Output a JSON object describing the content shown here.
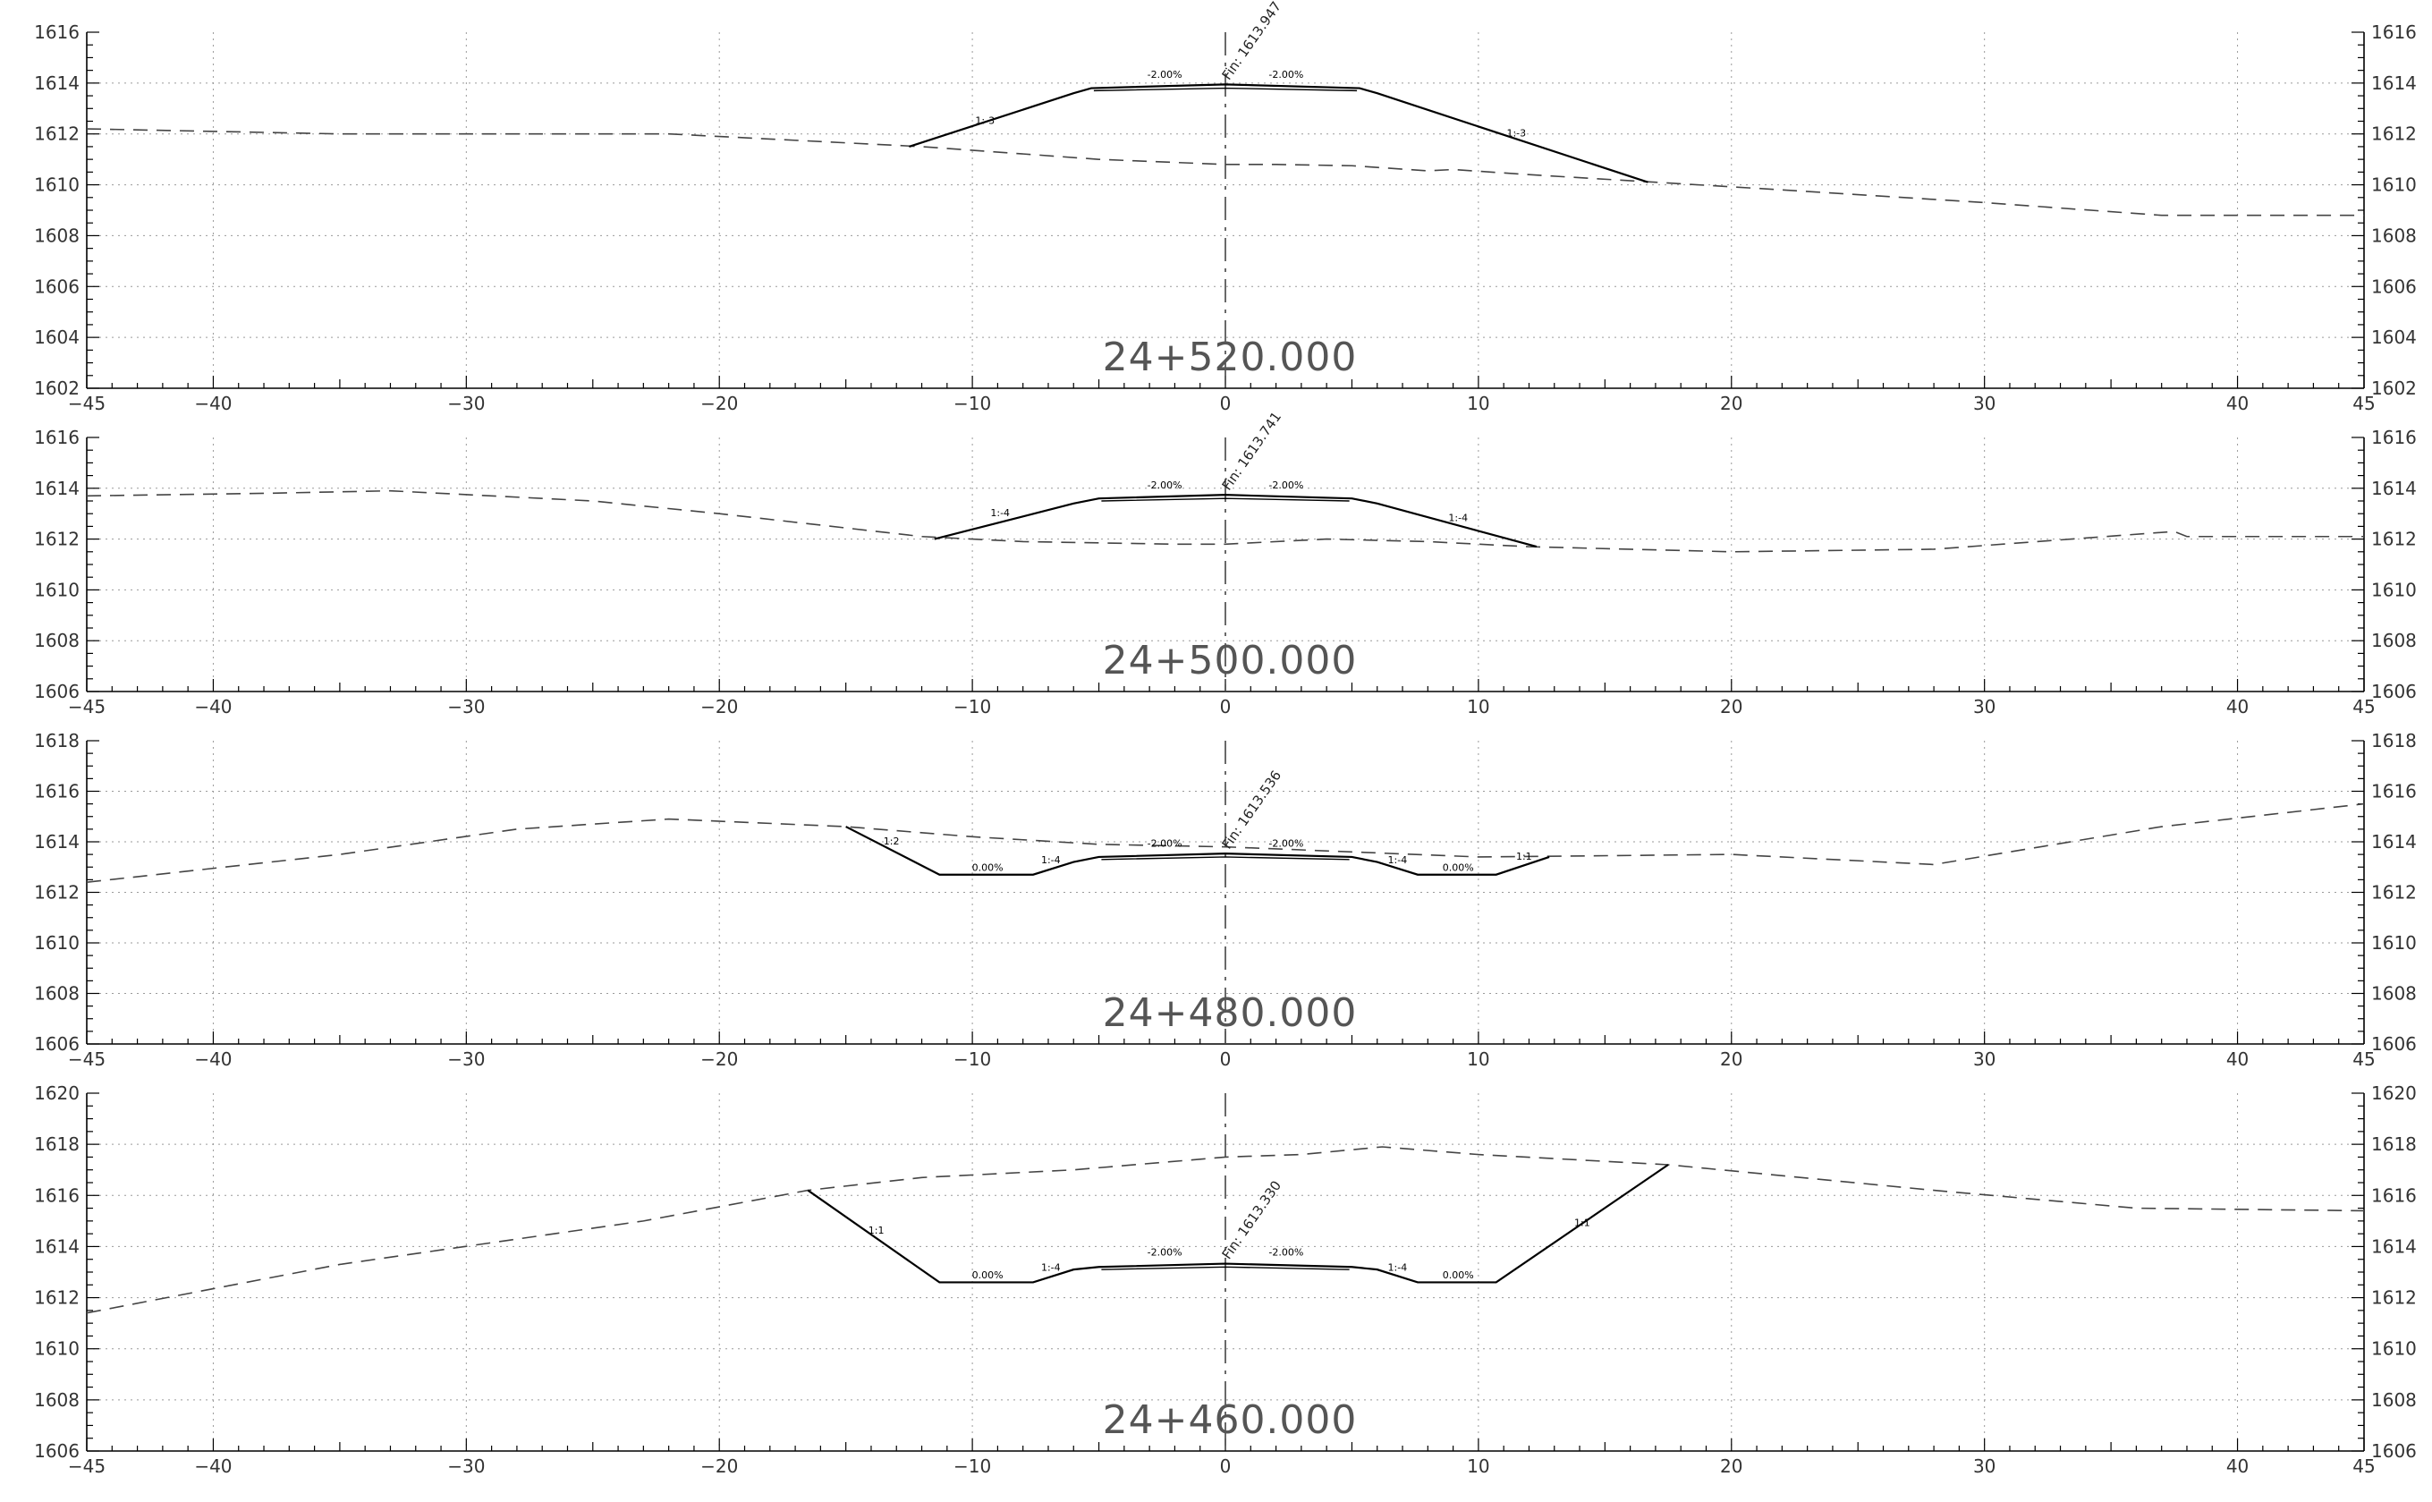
{
  "xTicks": [
    -45,
    -40,
    -30,
    -20,
    -10,
    0,
    10,
    20,
    30,
    40,
    45
  ],
  "sections": [
    {
      "station": "24+520.000",
      "yRange": [
        1602,
        1616
      ],
      "yTicks": [
        1602,
        1604,
        1606,
        1608,
        1610,
        1612,
        1614,
        1616
      ],
      "fin": "Fin: 1613.947",
      "finElev": 1613.947,
      "ground": [
        [
          -45,
          1612.2
        ],
        [
          -35,
          1612.0
        ],
        [
          -25,
          1612.0
        ],
        [
          -22,
          1612.0
        ],
        [
          -18,
          1611.8
        ],
        [
          -12,
          1611.5
        ],
        [
          -5,
          1611.0
        ],
        [
          0,
          1610.8
        ],
        [
          2,
          1610.8
        ],
        [
          5,
          1610.75
        ],
        [
          8,
          1610.55
        ],
        [
          9,
          1610.6
        ],
        [
          12,
          1610.4
        ],
        [
          17,
          1610.1
        ],
        [
          22,
          1609.8
        ],
        [
          30,
          1609.3
        ],
        [
          37,
          1608.8
        ],
        [
          45,
          1608.8
        ]
      ],
      "design": [
        [
          -12.5,
          1611.5
        ],
        [
          -6,
          1613.6
        ],
        [
          -5.3,
          1613.8
        ],
        [
          0,
          1613.947
        ],
        [
          5.3,
          1613.8
        ],
        [
          6,
          1613.6
        ],
        [
          16.7,
          1610.1
        ]
      ],
      "pavementInner": [
        [
          -5.2,
          1613.7
        ],
        [
          0,
          1613.8
        ],
        [
          5.2,
          1613.7
        ]
      ],
      "labels": [
        {
          "text": "1:-3",
          "x": -9.5,
          "y": 1612.4
        },
        {
          "text": "-2.00%",
          "x": -2.4,
          "y": 1614.2
        },
        {
          "text": "-2.00%",
          "x": 2.4,
          "y": 1614.2
        },
        {
          "text": "1:-3",
          "x": 11.5,
          "y": 1611.9
        }
      ]
    },
    {
      "station": "24+500.000",
      "yRange": [
        1606,
        1616
      ],
      "yTicks": [
        1606,
        1608,
        1610,
        1612,
        1614,
        1616
      ],
      "fin": "Fin: 1613.741",
      "finElev": 1613.741,
      "ground": [
        [
          -45,
          1613.7
        ],
        [
          -38,
          1613.8
        ],
        [
          -33,
          1613.9
        ],
        [
          -25,
          1613.5
        ],
        [
          -20,
          1613.0
        ],
        [
          -12,
          1612.1
        ],
        [
          -8,
          1611.9
        ],
        [
          -2,
          1611.8
        ],
        [
          0,
          1611.8
        ],
        [
          4,
          1612.0
        ],
        [
          8,
          1611.9
        ],
        [
          12,
          1611.7
        ],
        [
          20,
          1611.5
        ],
        [
          28,
          1611.6
        ],
        [
          37.5,
          1612.3
        ],
        [
          38,
          1612.1
        ],
        [
          45,
          1612.1
        ]
      ],
      "design": [
        [
          -11.5,
          1612.0
        ],
        [
          -6,
          1613.4
        ],
        [
          -5,
          1613.6
        ],
        [
          0,
          1613.741
        ],
        [
          5,
          1613.6
        ],
        [
          6,
          1613.4
        ],
        [
          12.3,
          1611.7
        ]
      ],
      "pavementInner": [
        [
          -4.9,
          1613.5
        ],
        [
          0,
          1613.6
        ],
        [
          4.9,
          1613.5
        ]
      ],
      "labels": [
        {
          "text": "1:-4",
          "x": -8.9,
          "y": 1612.9
        },
        {
          "text": "-2.00%",
          "x": -2.4,
          "y": 1614.0
        },
        {
          "text": "-2.00%",
          "x": 2.4,
          "y": 1614.0
        },
        {
          "text": "1:-4",
          "x": 9.2,
          "y": 1612.7
        }
      ]
    },
    {
      "station": "24+480.000",
      "yRange": [
        1606,
        1618
      ],
      "yTicks": [
        1606,
        1608,
        1610,
        1612,
        1614,
        1616,
        1618
      ],
      "fin": "Fin: 1613.536",
      "finElev": 1613.536,
      "ground": [
        [
          -45,
          1612.4
        ],
        [
          -35,
          1613.5
        ],
        [
          -28,
          1614.5
        ],
        [
          -22,
          1614.9
        ],
        [
          -15,
          1614.6
        ],
        [
          -10,
          1614.2
        ],
        [
          -5,
          1613.9
        ],
        [
          0,
          1613.8
        ],
        [
          5,
          1613.6
        ],
        [
          10,
          1613.4
        ],
        [
          20,
          1613.5
        ],
        [
          28,
          1613.1
        ],
        [
          37,
          1614.6
        ],
        [
          45,
          1615.5
        ]
      ],
      "design": [
        [
          -15,
          1614.6
        ],
        [
          -11.3,
          1612.7
        ],
        [
          -7.6,
          1612.7
        ],
        [
          -6,
          1613.2
        ],
        [
          -5,
          1613.4
        ],
        [
          0,
          1613.536
        ],
        [
          5,
          1613.4
        ],
        [
          6,
          1613.2
        ],
        [
          7.6,
          1612.7
        ],
        [
          10.7,
          1612.7
        ],
        [
          12.8,
          1613.4
        ]
      ],
      "pavementInner": [
        [
          -4.9,
          1613.3
        ],
        [
          0,
          1613.4
        ],
        [
          4.9,
          1613.3
        ]
      ],
      "labels": [
        {
          "text": "1:2",
          "x": -13.2,
          "y": 1613.9
        },
        {
          "text": "0.00%",
          "x": -9.4,
          "y": 1612.85
        },
        {
          "text": "1:-4",
          "x": -6.9,
          "y": 1613.15
        },
        {
          "text": "-2.00%",
          "x": -2.4,
          "y": 1613.8
        },
        {
          "text": "-2.00%",
          "x": 2.4,
          "y": 1613.8
        },
        {
          "text": "1:-4",
          "x": 6.8,
          "y": 1613.15
        },
        {
          "text": "0.00%",
          "x": 9.2,
          "y": 1612.85
        },
        {
          "text": "1:1",
          "x": 11.8,
          "y": 1613.3
        }
      ]
    },
    {
      "station": "24+460.000",
      "yRange": [
        1606,
        1620
      ],
      "yTicks": [
        1606,
        1608,
        1610,
        1612,
        1614,
        1616,
        1618,
        1620
      ],
      "fin": "Fin: 1613.330",
      "finElev": 1613.33,
      "ground": [
        [
          -45,
          1611.4
        ],
        [
          -35,
          1613.3
        ],
        [
          -23,
          1615.0
        ],
        [
          -16.5,
          1616.2
        ],
        [
          -12,
          1616.7
        ],
        [
          -6,
          1617.0
        ],
        [
          0,
          1617.5
        ],
        [
          3,
          1617.6
        ],
        [
          6.2,
          1617.9
        ],
        [
          10,
          1617.6
        ],
        [
          17.5,
          1617.2
        ],
        [
          28,
          1616.2
        ],
        [
          36,
          1615.5
        ],
        [
          45,
          1615.4
        ]
      ],
      "design": [
        [
          -16.5,
          1616.2
        ],
        [
          -11.3,
          1612.6
        ],
        [
          -7.6,
          1612.6
        ],
        [
          -6,
          1613.1
        ],
        [
          -5,
          1613.2
        ],
        [
          0,
          1613.33
        ],
        [
          5,
          1613.2
        ],
        [
          6,
          1613.1
        ],
        [
          7.6,
          1612.6
        ],
        [
          10.7,
          1612.6
        ],
        [
          17.5,
          1617.2
        ]
      ],
      "pavementInner": [
        [
          -4.9,
          1613.1
        ],
        [
          0,
          1613.2
        ],
        [
          4.9,
          1613.1
        ]
      ],
      "labels": [
        {
          "text": "1:1",
          "x": -13.8,
          "y": 1614.5
        },
        {
          "text": "0.00%",
          "x": -9.4,
          "y": 1612.75
        },
        {
          "text": "1:-4",
          "x": -6.9,
          "y": 1613.05
        },
        {
          "text": "-2.00%",
          "x": -2.4,
          "y": 1613.65
        },
        {
          "text": "-2.00%",
          "x": 2.4,
          "y": 1613.65
        },
        {
          "text": "1:-4",
          "x": 6.8,
          "y": 1613.05
        },
        {
          "text": "0.00%",
          "x": 9.2,
          "y": 1612.75
        },
        {
          "text": "1:1",
          "x": 14.1,
          "y": 1614.8
        }
      ]
    }
  ]
}
